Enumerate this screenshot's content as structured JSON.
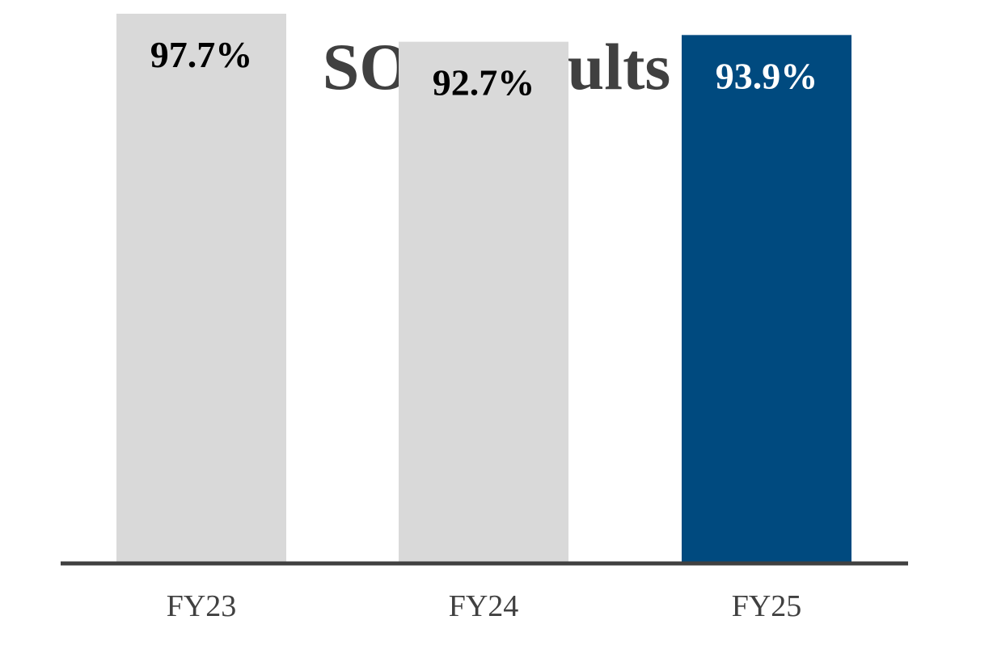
{
  "chart_data": {
    "type": "bar",
    "title": "SOP Results",
    "xlabel": "",
    "ylabel": "",
    "categories": [
      "FY23",
      "FY24",
      "FY25"
    ],
    "values": [
      97.7,
      92.7,
      93.9
    ],
    "value_labels": [
      "97.7%",
      "92.7%",
      "93.9%"
    ],
    "ylim": [
      0,
      100
    ],
    "grid": false,
    "legend": "none",
    "colors": {
      "bar_default": "#d9d9d9",
      "bar_highlight": "#004a7f",
      "label_default": "#000000",
      "label_highlight": "#ffffff",
      "axis": "#404040",
      "title": "#404040"
    },
    "highlight_index": 2
  }
}
